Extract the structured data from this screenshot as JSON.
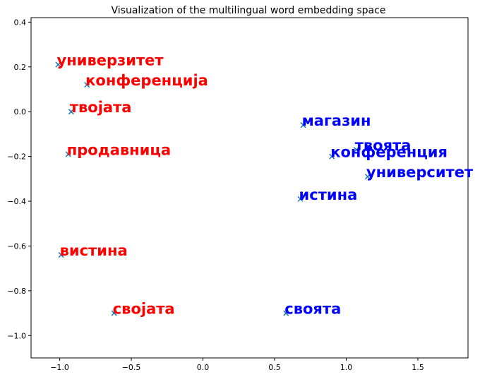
{
  "chart_data": {
    "type": "scatter",
    "title": "Visualization of the multilingual word embedding space",
    "xlabel": "",
    "ylabel": "",
    "xlim": [
      -1.2,
      1.85
    ],
    "ylim": [
      -1.1,
      0.42
    ],
    "xticks": [
      -1.0,
      -0.5,
      0.0,
      0.5,
      1.0,
      1.5
    ],
    "xtick_labels": [
      "−1.0",
      "−0.5",
      "0.0",
      "0.5",
      "1.0",
      "1.5"
    ],
    "yticks": [
      0.4,
      0.2,
      0.0,
      -0.2,
      -0.4,
      -0.6,
      -0.8,
      -1.0
    ],
    "ytick_labels": [
      "0.4",
      "0.2",
      "0.0",
      "−0.2",
      "−0.4",
      "−0.6",
      "−0.8",
      "−1.0"
    ],
    "grid": false,
    "marker": "x",
    "marker_color": "#1f77b4",
    "series": [
      {
        "color": "#ff0000",
        "points": [
          {
            "label": "универзитет",
            "x": -1.01,
            "y": 0.21
          },
          {
            "label": "конференција",
            "x": -0.81,
            "y": 0.12
          },
          {
            "label": "твојата",
            "x": -0.92,
            "y": 0.0
          },
          {
            "label": "продавница",
            "x": -0.94,
            "y": -0.19
          },
          {
            "label": "вистина",
            "x": -0.99,
            "y": -0.64
          },
          {
            "label": "својата",
            "x": -0.62,
            "y": -0.9
          }
        ]
      },
      {
        "color": "#0000ff",
        "points": [
          {
            "label": "магазин",
            "x": 0.7,
            "y": -0.06
          },
          {
            "label": "твоята",
            "x": 1.07,
            "y": -0.17
          },
          {
            "label": "конференция",
            "x": 0.9,
            "y": -0.2
          },
          {
            "label": "университет",
            "x": 1.15,
            "y": -0.29
          },
          {
            "label": "истина",
            "x": 0.68,
            "y": -0.39
          },
          {
            "label": "своята",
            "x": 0.58,
            "y": -0.9
          }
        ]
      }
    ]
  }
}
